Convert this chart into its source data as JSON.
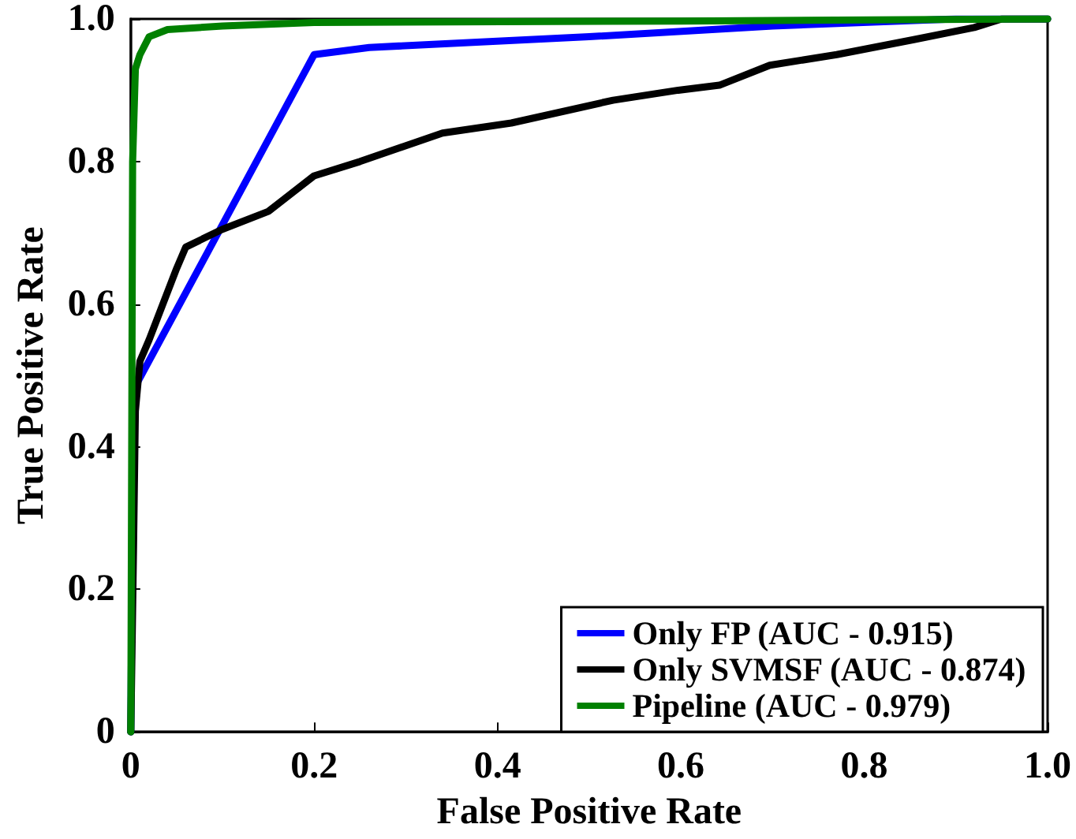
{
  "chart_data": {
    "type": "line",
    "xlabel": "False Positive Rate",
    "ylabel": "True Positive Rate",
    "xlim": [
      0,
      1.0
    ],
    "ylim": [
      0,
      1.0
    ],
    "xticks": [
      0,
      0.2,
      0.4,
      0.6,
      0.8,
      {
        "value": 1.0,
        "label": "1.0"
      }
    ],
    "yticks": [
      0,
      0.2,
      0.4,
      0.6,
      0.8,
      {
        "value": 1.0,
        "label": "1.0"
      }
    ],
    "grid": false,
    "legend": "bottom right",
    "marker": "none",
    "line_style": "solid",
    "series": [
      {
        "name": "Only FP (AUC - 0.915)",
        "color": "#0000ff",
        "x": [
          0,
          0.003,
          0.2,
          0.26,
          0.5,
          0.7,
          0.9,
          1.0
        ],
        "values": [
          0,
          0.48,
          0.95,
          0.96,
          0.975,
          0.99,
          1.0,
          1.0
        ]
      },
      {
        "name": "Only SVMSF (AUC - 0.874)",
        "color": "#000000",
        "x": [
          0,
          0.003,
          0.005,
          0.01,
          0.02,
          0.035,
          0.05,
          0.06,
          0.1,
          0.15,
          0.2,
          0.25,
          0.34,
          0.415,
          0.526,
          0.597,
          0.642,
          0.697,
          0.77,
          0.854,
          0.92,
          0.95,
          1.0
        ],
        "values": [
          0,
          0.26,
          0.45,
          0.52,
          0.55,
          0.6,
          0.65,
          0.68,
          0.705,
          0.73,
          0.78,
          0.8,
          0.84,
          0.854,
          0.886,
          0.9,
          0.907,
          0.935,
          0.95,
          0.971,
          0.988,
          1.0,
          1.0
        ]
      },
      {
        "name": "Pipeline (AUC - 0.979)",
        "color": "#008000",
        "x": [
          0,
          0.002,
          0.005,
          0.01,
          0.02,
          0.04,
          0.1,
          0.2,
          0.6,
          1.0
        ],
        "values": [
          0,
          0.8,
          0.93,
          0.95,
          0.975,
          0.985,
          0.99,
          0.995,
          0.997,
          1.0
        ]
      }
    ]
  }
}
